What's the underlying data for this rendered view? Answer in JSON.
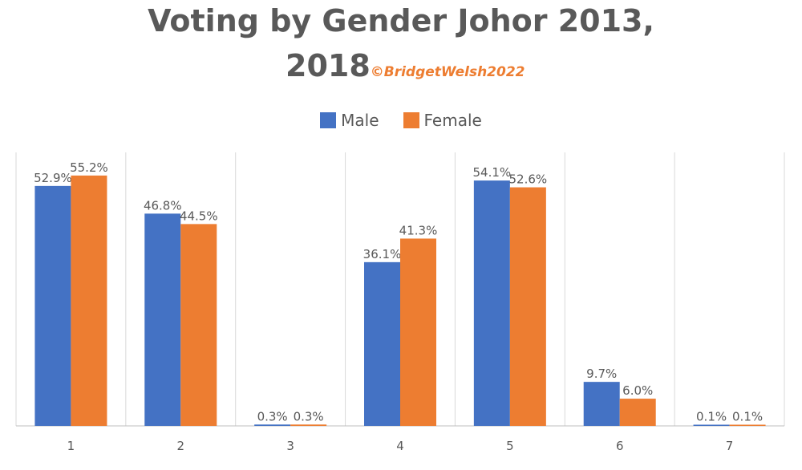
{
  "chart_data": {
    "type": "bar",
    "title": "Voting by Gender Johor 2013,",
    "title_line2": "2018",
    "credit": "©BridgetWelsh2022",
    "categories": [
      "1",
      "2",
      "3",
      "4",
      "5",
      "6",
      "7"
    ],
    "series": [
      {
        "name": "Male",
        "color": "#4472C4",
        "values": [
          52.9,
          46.8,
          0.3,
          36.1,
          54.1,
          9.7,
          0.1
        ],
        "labels": [
          "52.9%",
          "46.8%",
          "0.3%",
          "36.1%",
          "54.1%",
          "9.7%",
          "0.1%"
        ]
      },
      {
        "name": "Female",
        "color": "#ED7D31",
        "values": [
          55.2,
          44.5,
          0.3,
          41.3,
          52.6,
          6.0,
          0.1
        ],
        "labels": [
          "55.2%",
          "44.5%",
          "0.3%",
          "41.3%",
          "52.6%",
          "6.0%",
          "0.1%"
        ]
      }
    ],
    "ylim": [
      0,
      60
    ],
    "legend": "top-center",
    "grid": "vertical"
  }
}
